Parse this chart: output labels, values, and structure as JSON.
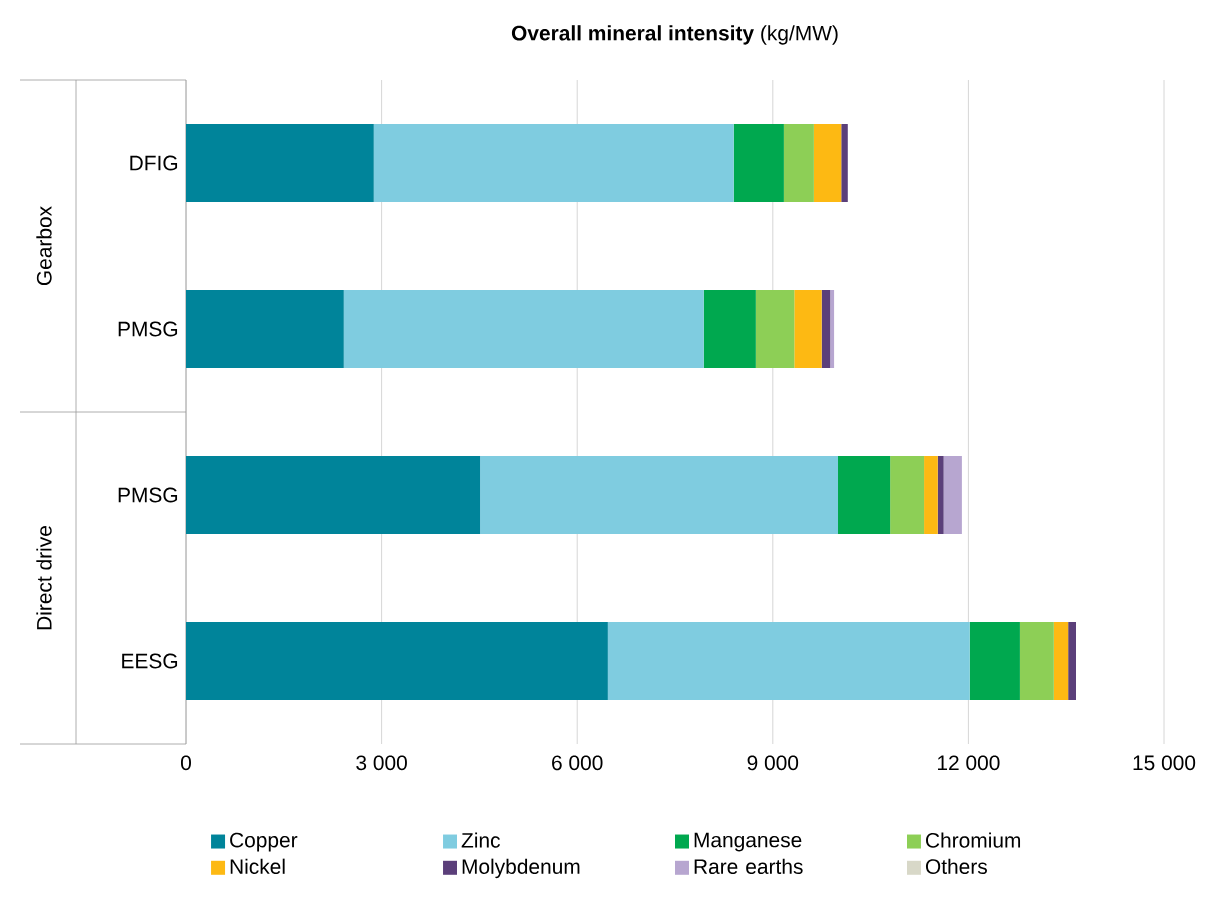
{
  "chart_data": {
    "type": "bar",
    "orientation": "horizontal",
    "stacked": true,
    "title": "**Overall mineral intensity** (kg/MW)",
    "categories": [
      "DFIG",
      "PMSG",
      "PMSG",
      "EESG"
    ],
    "annotations": [
      "Gearbox",
      "Direct drive"
    ],
    "series": [
      {
        "name": "Copper",
        "color": "#00849a",
        "values": [
          2880,
          2420,
          4510,
          6470
        ]
      },
      {
        "name": "Zinc",
        "color": "#7fcce0",
        "values": [
          5520,
          5520,
          5490,
          5550
        ]
      },
      {
        "name": "Manganese",
        "color": "#00a84f",
        "values": [
          770,
          800,
          800,
          770
        ]
      },
      {
        "name": "Chromium",
        "color": "#8dcf56",
        "values": [
          460,
          590,
          520,
          520
        ]
      },
      {
        "name": "Nickel",
        "color": "#fdb913",
        "values": [
          420,
          420,
          210,
          220
        ]
      },
      {
        "name": "Molybdenum",
        "color": "#5b3f7a",
        "values": [
          100,
          130,
          90,
          120
        ]
      },
      {
        "name": "Rare earths",
        "color": "#b7a6d0",
        "values": [
          0,
          60,
          280,
          0
        ]
      },
      {
        "name": "Others",
        "color": "#d8d8c8",
        "values": [
          0,
          0,
          0,
          0
        ]
      }
    ],
    "xlim": [
      0,
      15000
    ],
    "xticks": [
      {
        "value": 0,
        "label": "0"
      },
      {
        "value": 3000,
        "label": "3 000"
      },
      {
        "value": 6000,
        "label": "6 000"
      },
      {
        "value": 9000,
        "label": "9 000"
      },
      {
        "value": 12000,
        "label": "12 000"
      },
      {
        "value": 15000,
        "label": "15 000"
      }
    ],
    "grid": "x",
    "legend": "bottom"
  }
}
